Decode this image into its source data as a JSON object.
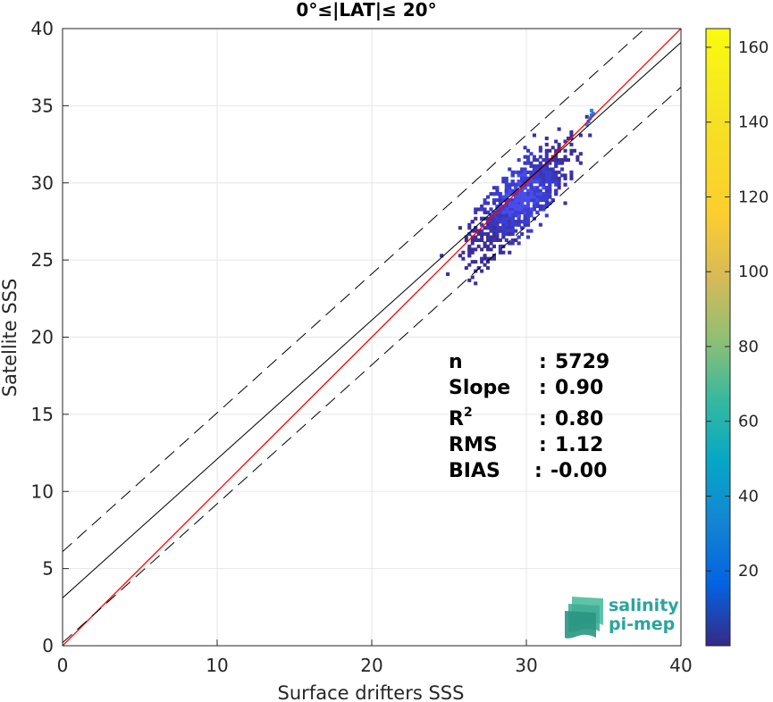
{
  "chart_data": {
    "type": "heatmap",
    "title": "0°≤|LAT|≤ 20°",
    "xlabel": "Surface drifters SSS",
    "ylabel": "Satellite SSS",
    "xlim": [
      0,
      40
    ],
    "ylim": [
      0,
      40
    ],
    "xticks": [
      "0",
      "10",
      "20",
      "30",
      "40"
    ],
    "yticks": [
      "0",
      "5",
      "10",
      "15",
      "20",
      "25",
      "30",
      "35",
      "40"
    ],
    "grid": true,
    "lines": [
      {
        "name": "one-to-one",
        "color": "#ff0000",
        "style": "solid",
        "slope": 1.0,
        "intercept": 0.0
      },
      {
        "name": "fit",
        "color": "#000000",
        "style": "solid",
        "slope": 0.9,
        "intercept": 3.1
      },
      {
        "name": "upper-bound",
        "color": "#000000",
        "style": "dashed",
        "slope": 0.9,
        "intercept": 6.1
      },
      {
        "name": "lower-bound",
        "color": "#000000",
        "style": "dashed",
        "slope": 0.9,
        "intercept": 0.2
      }
    ],
    "density_cloud": {
      "x_center": 29.5,
      "y_center": 29.3,
      "x_range": [
        23.0,
        34.5
      ],
      "y_range": [
        23.5,
        35.0
      ],
      "cell_size": 0.2,
      "max_count_in_cloud": 60
    },
    "colorbar": {
      "colormap": "parula",
      "range": [
        0,
        165
      ],
      "ticks": [
        "20",
        "40",
        "60",
        "80",
        "100",
        "120",
        "140",
        "160"
      ],
      "tick_values": [
        20,
        40,
        60,
        80,
        100,
        120,
        140,
        160
      ]
    },
    "stats": [
      {
        "label": "n",
        "sep": ":",
        "value": "5729"
      },
      {
        "label": "Slope",
        "sep": ":",
        "value": "0.90"
      },
      {
        "label": "R2",
        "sep": ":",
        "value": "0.80"
      },
      {
        "label": "RMS",
        "sep": ":",
        "value": "1.12"
      },
      {
        "label": "BIAS",
        "sep": ":",
        "value": "-0.00"
      }
    ]
  },
  "logo": {
    "line1": "salinity",
    "line2": "pi-mep",
    "color": "#2aa69a"
  }
}
